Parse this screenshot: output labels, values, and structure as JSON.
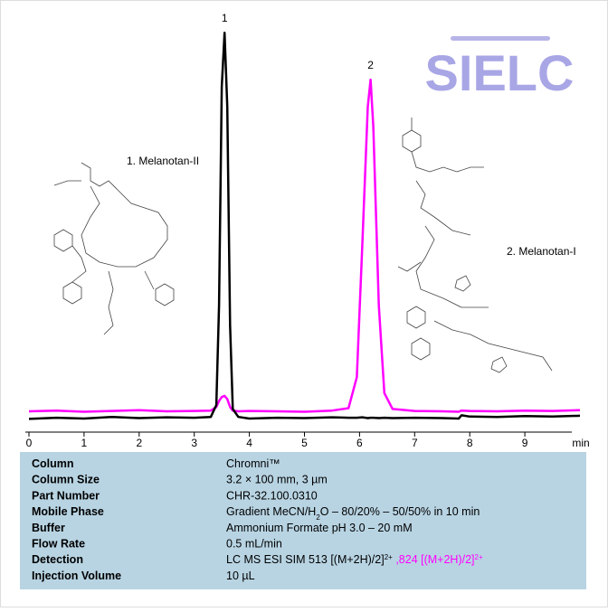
{
  "chart_data": {
    "type": "line",
    "logo": "SIELC",
    "compounds": [
      "1. Melanotan-II",
      "2. Melanotan-I"
    ],
    "peak_labels": [
      "1",
      "2"
    ],
    "x_label": "min",
    "xlim": [
      0,
      10
    ],
    "xticks": [
      0,
      1,
      2,
      3,
      4,
      5,
      6,
      7,
      8,
      9
    ],
    "ylim": [
      0,
      100
    ],
    "x": [
      0,
      0.5,
      1,
      1.5,
      2,
      2.5,
      3,
      3.3,
      3.4,
      3.45,
      3.5,
      3.55,
      3.6,
      3.65,
      3.7,
      3.8,
      4,
      4.5,
      5,
      5.5,
      5.8,
      5.95,
      6.05,
      6.15,
      6.2,
      6.25,
      6.35,
      6.45,
      6.6,
      7,
      7.5,
      7.8,
      7.85,
      8,
      8.5,
      9,
      9.5,
      10
    ],
    "series": [
      {
        "color": "#ff00ff",
        "values": [
          3.4,
          3.6,
          3.3,
          3.5,
          3.7,
          3.4,
          3.5,
          3.6,
          4.5,
          6,
          7,
          7.3,
          6.5,
          4.5,
          3.6,
          3.4,
          3.5,
          3.4,
          3.3,
          3.6,
          4.2,
          12,
          45,
          80,
          86.8,
          75,
          30,
          8,
          4,
          3.5,
          3.4,
          3.3,
          3.6,
          3.5,
          3.4,
          3.6,
          3.5,
          3.7
        ]
      },
      {
        "color": "#000000",
        "values": [
          1.5,
          1.8,
          1.6,
          2,
          1.7,
          1.9,
          1.8,
          2,
          5,
          30,
          85,
          98.6,
          80,
          25,
          4,
          2,
          1.6,
          1.8,
          1.7,
          1.9,
          1.8,
          1.8,
          1.9,
          1.7,
          1.8,
          1.8,
          1.7,
          1.8,
          1.7,
          1.8,
          1.7,
          1.6,
          2.4,
          2.1,
          2,
          2.2,
          2.1,
          2.3
        ]
      }
    ]
  },
  "table": {
    "rows": [
      {
        "label": "Column",
        "value": [
          {
            "text": "Chromni™"
          }
        ]
      },
      {
        "label": "Column Size",
        "value": [
          {
            "text": "3.2 × 100 mm, 3 µm"
          }
        ]
      },
      {
        "label": "Part Number",
        "value": [
          {
            "text": "CHR-32.100.0310"
          }
        ]
      },
      {
        "label": "Mobile Phase",
        "value": [
          {
            "text": "Gradient MeCN/H"
          },
          {
            "text": "2",
            "shift": "sub"
          },
          {
            "text": "O – 80/20% – 50/50% in 10 min"
          }
        ]
      },
      {
        "label": "Buffer",
        "value": [
          {
            "text": "Ammonium Formate pH 3.0 – 20 mM"
          }
        ]
      },
      {
        "label": "Flow Rate",
        "value": [
          {
            "text": "0.5 mL/min"
          }
        ]
      },
      {
        "label": "Detection",
        "value": [
          {
            "text": "LC MS ESI SIM 513 [(M+2H)/2]"
          },
          {
            "text": "2+",
            "shift": "super"
          },
          {
            "text": " ,824 [(M+2H)/2]",
            "color": "#ff00ff"
          },
          {
            "text": "2+",
            "shift": "super",
            "color": "#ff00ff"
          }
        ]
      },
      {
        "label": "Injection Volume",
        "value": [
          {
            "text": "10 µL"
          }
        ]
      }
    ]
  }
}
